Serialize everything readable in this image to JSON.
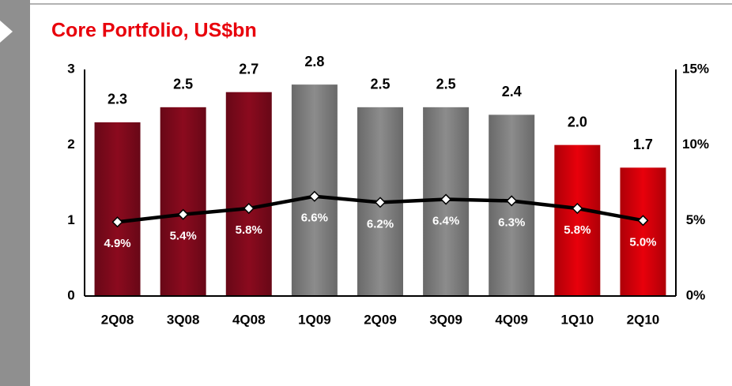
{
  "chart_data": {
    "type": "bar",
    "title": "Core Portfolio, US$bn",
    "categories": [
      "2Q08",
      "3Q08",
      "4Q08",
      "1Q09",
      "2Q09",
      "3Q09",
      "4Q09",
      "1Q10",
      "2Q10"
    ],
    "series": [
      {
        "type": "bar",
        "values": [
          2.3,
          2.5,
          2.7,
          2.8,
          2.5,
          2.5,
          2.4,
          2.0,
          1.7
        ],
        "value_labels": [
          "2.3",
          "2.5",
          "2.7",
          "2.8",
          "2.5",
          "2.5",
          "2.4",
          "2.0",
          "1.7"
        ],
        "colors": [
          "#8b0a1e",
          "#8b0a1e",
          "#8b0a1e",
          "#8c8c8c",
          "#8c8c8c",
          "#8c8c8c",
          "#8c8c8c",
          "#e8000b",
          "#e8000b"
        ]
      },
      {
        "type": "line",
        "axis": "y2",
        "color": "#000000",
        "values": [
          4.9,
          5.4,
          5.8,
          6.6,
          6.2,
          6.4,
          6.3,
          5.8,
          5.0
        ],
        "value_labels": [
          "4.9%",
          "5.4%",
          "5.8%",
          "6.6%",
          "6.2%",
          "6.4%",
          "6.3%",
          "5.8%",
          "5.0%"
        ]
      }
    ],
    "ylim": [
      0,
      3
    ],
    "yticks": [
      0,
      1,
      2,
      3
    ],
    "y2lim": [
      0,
      15
    ],
    "y2ticks": [
      {
        "value": 0,
        "label": "0%"
      },
      {
        "value": 5,
        "label": "5%"
      },
      {
        "value": 10,
        "label": "10%"
      },
      {
        "value": 15,
        "label": "15%"
      }
    ]
  }
}
